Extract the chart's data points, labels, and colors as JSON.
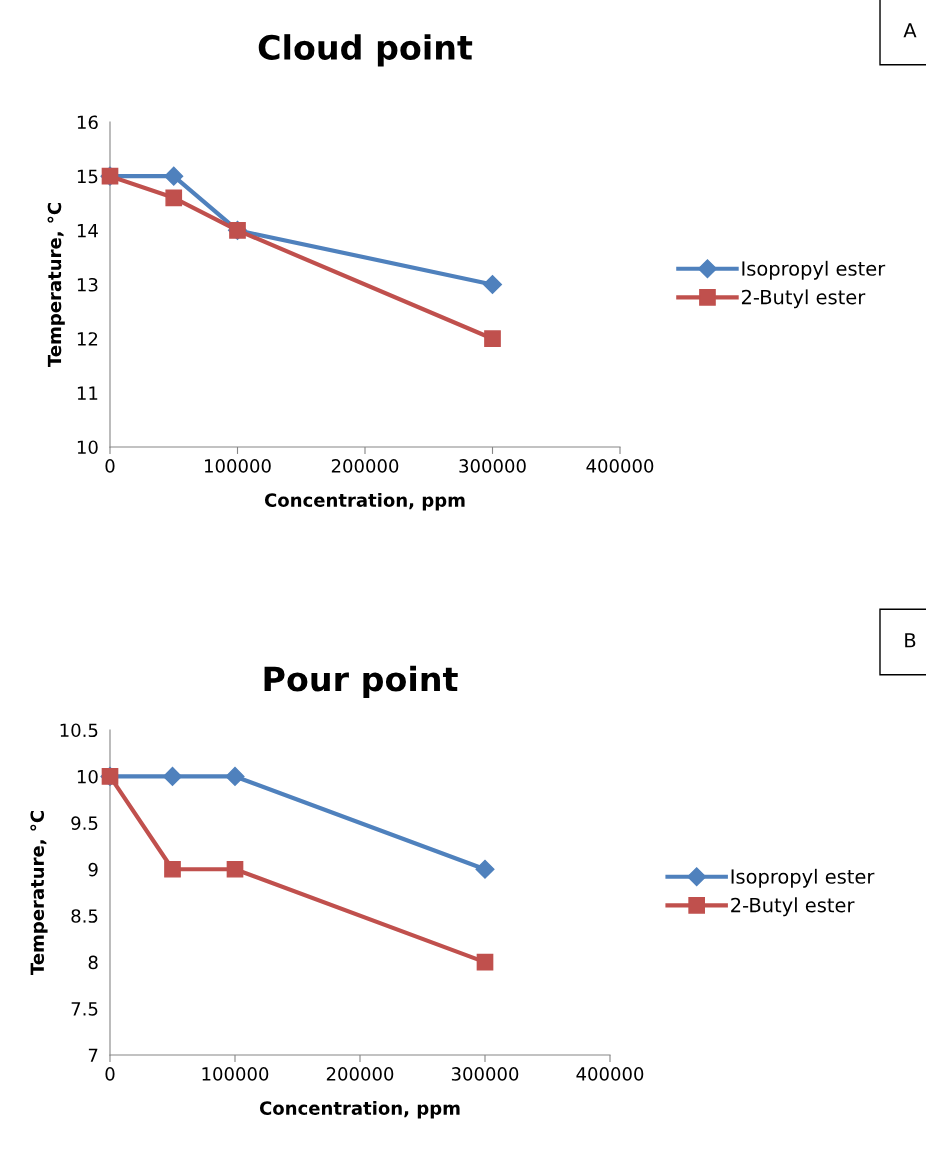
{
  "chart_data": [
    {
      "type": "line",
      "title": "Cloud point",
      "xlabel": "Concentration, ppm",
      "ylabel": "Temperature, °C",
      "annotations": [
        "A"
      ],
      "x": [
        0,
        50000,
        100000,
        300000
      ],
      "series": [
        {
          "name": "Isopropyl ester",
          "color": "#4f81bd",
          "marker": "diamond",
          "values": [
            15,
            15,
            14,
            13
          ]
        },
        {
          "name": "2-Butyl ester",
          "color": "#c0504d",
          "marker": "square",
          "values": [
            15,
            14.6,
            14,
            12
          ]
        }
      ],
      "xlim": [
        0,
        400000
      ],
      "xticks": [
        0,
        100000,
        200000,
        300000,
        400000
      ],
      "ylim": [
        10,
        16
      ],
      "yticks": [
        10,
        11,
        12,
        13,
        14,
        15,
        16
      ],
      "grid": false,
      "legend": "right"
    },
    {
      "type": "line",
      "title": "Pour point",
      "xlabel": "Concentration, ppm",
      "ylabel": "Temperature, °C",
      "annotations": [
        "B"
      ],
      "x": [
        0,
        50000,
        100000,
        300000
      ],
      "series": [
        {
          "name": "Isopropyl ester",
          "color": "#4f81bd",
          "marker": "diamond",
          "values": [
            10,
            10,
            10,
            9
          ]
        },
        {
          "name": "2-Butyl ester",
          "color": "#c0504d",
          "marker": "square",
          "values": [
            10,
            9,
            9,
            8
          ]
        }
      ],
      "xlim": [
        0,
        400000
      ],
      "xticks": [
        0,
        100000,
        200000,
        300000,
        400000
      ],
      "ylim": [
        7,
        10.5
      ],
      "yticks": [
        7,
        7.5,
        8,
        8.5,
        9,
        9.5,
        10,
        10.5
      ],
      "grid": false,
      "legend": "right"
    }
  ]
}
